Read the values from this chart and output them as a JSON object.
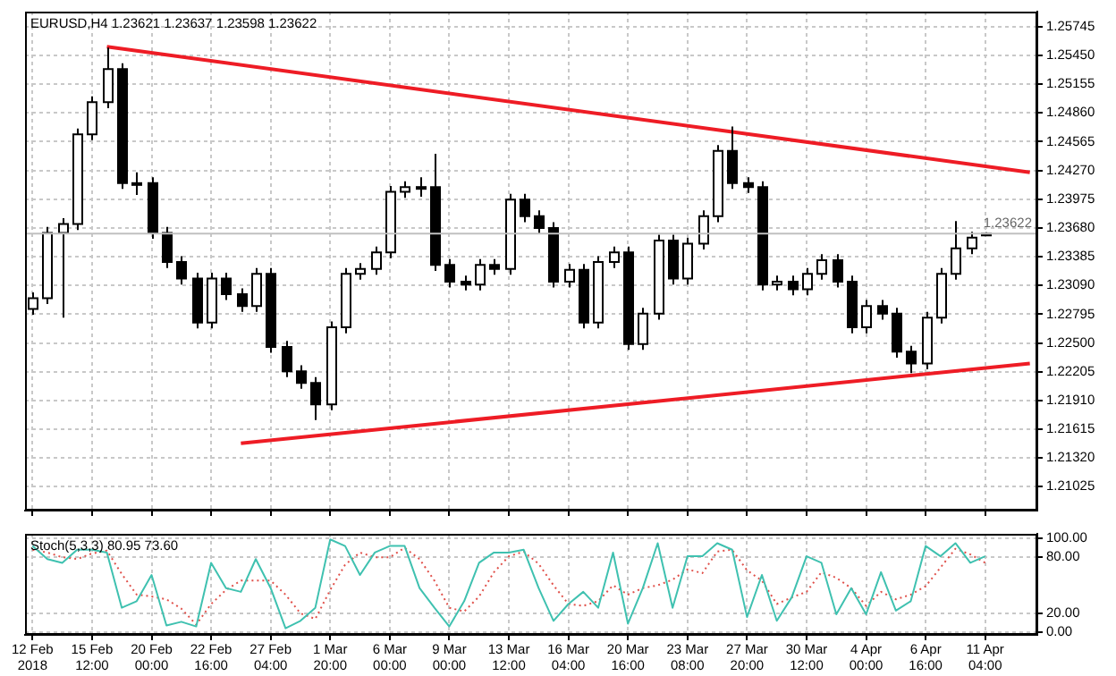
{
  "chart_data": [
    {
      "type": "candlestick",
      "title": "EURUSD,H4 1.23621 1.23637 1.23598 1.23622",
      "categories": [
        null,
        null,
        null,
        null,
        null,
        null,
        null,
        null,
        null,
        null,
        null,
        null,
        null,
        null,
        null,
        null,
        null,
        null,
        null,
        null,
        null,
        null,
        null,
        null,
        null,
        null,
        null,
        null,
        null,
        null,
        null,
        null,
        null,
        null,
        null,
        null,
        null,
        null,
        null,
        null,
        null,
        null,
        null,
        null,
        null,
        null,
        null,
        null,
        null,
        null,
        null,
        null,
        null,
        null,
        null,
        null,
        null,
        null,
        null,
        null,
        null,
        null,
        null,
        null,
        null,
        null,
        null,
        null
      ],
      "ohlc": [
        [
          1.2285,
          1.2302,
          1.2279,
          1.2296
        ],
        [
          1.2296,
          1.2369,
          1.229,
          1.2363
        ],
        [
          1.2363,
          1.2378,
          1.2276,
          1.2372
        ],
        [
          1.2372,
          1.247,
          1.2366,
          1.2464
        ],
        [
          1.2464,
          1.2503,
          1.2458,
          1.2497
        ],
        [
          1.2497,
          1.2553,
          1.2491,
          1.2531
        ],
        [
          1.2531,
          1.2537,
          1.2408,
          1.2414
        ],
        [
          1.2414,
          1.2425,
          1.2402,
          1.2414
        ],
        [
          1.2414,
          1.242,
          1.2357,
          1.2363
        ],
        [
          1.2363,
          1.2369,
          1.2327,
          1.2333
        ],
        [
          1.2333,
          1.2339,
          1.231,
          1.2316
        ],
        [
          1.2316,
          1.2322,
          1.2265,
          1.2271
        ],
        [
          1.2271,
          1.2322,
          1.2265,
          1.2316
        ],
        [
          1.2316,
          1.2322,
          1.2294,
          1.23
        ],
        [
          1.23,
          1.2306,
          1.2282,
          1.2288
        ],
        [
          1.2288,
          1.2327,
          1.2282,
          1.2321
        ],
        [
          1.2321,
          1.2327,
          1.224,
          1.2246
        ],
        [
          1.2246,
          1.2252,
          1.2215,
          1.2221
        ],
        [
          1.2221,
          1.2227,
          1.2203,
          1.2209
        ],
        [
          1.2209,
          1.2215,
          1.2171,
          1.2187
        ],
        [
          1.2187,
          1.2272,
          1.2181,
          1.2266
        ],
        [
          1.2266,
          1.2327,
          1.226,
          1.2321
        ],
        [
          1.2321,
          1.2332,
          1.2315,
          1.2326
        ],
        [
          1.2326,
          1.2349,
          1.232,
          1.2343
        ],
        [
          1.2343,
          1.2411,
          1.2337,
          1.2405
        ],
        [
          1.2405,
          1.2416,
          1.2399,
          1.241
        ],
        [
          1.241,
          1.242,
          1.24,
          1.241
        ],
        [
          1.241,
          1.2444,
          1.2324,
          1.233
        ],
        [
          1.233,
          1.2336,
          1.2307,
          1.2313
        ],
        [
          1.2313,
          1.2319,
          1.2304,
          1.231
        ],
        [
          1.231,
          1.2336,
          1.2304,
          1.233
        ],
        [
          1.233,
          1.2336,
          1.232,
          1.2326
        ],
        [
          1.2326,
          1.2403,
          1.232,
          1.2397
        ],
        [
          1.2397,
          1.2403,
          1.2374,
          1.238
        ],
        [
          1.238,
          1.2386,
          1.2362,
          1.2368
        ],
        [
          1.2368,
          1.2374,
          1.2307,
          1.2313
        ],
        [
          1.2313,
          1.2331,
          1.2307,
          1.2325
        ],
        [
          1.2325,
          1.2331,
          1.2265,
          1.2271
        ],
        [
          1.2271,
          1.2339,
          1.2265,
          1.2333
        ],
        [
          1.2333,
          1.2349,
          1.2327,
          1.2343
        ],
        [
          1.2343,
          1.2349,
          1.2243,
          1.2249
        ],
        [
          1.2249,
          1.2286,
          1.2243,
          1.228
        ],
        [
          1.228,
          1.2361,
          1.2274,
          1.2355
        ],
        [
          1.2355,
          1.2361,
          1.231,
          1.2316
        ],
        [
          1.2316,
          1.2358,
          1.231,
          1.2352
        ],
        [
          1.2352,
          1.2386,
          1.2346,
          1.238
        ],
        [
          1.238,
          1.2453,
          1.2374,
          1.2447
        ],
        [
          1.2447,
          1.2472,
          1.2408,
          1.2414
        ],
        [
          1.2414,
          1.242,
          1.2404,
          1.241
        ],
        [
          1.241,
          1.2416,
          1.2304,
          1.231
        ],
        [
          1.231,
          1.2319,
          1.2304,
          1.2313
        ],
        [
          1.2313,
          1.2319,
          1.2299,
          1.2305
        ],
        [
          1.2305,
          1.2327,
          1.2299,
          1.2321
        ],
        [
          1.2321,
          1.2341,
          1.2315,
          1.2335
        ],
        [
          1.2335,
          1.2341,
          1.2307,
          1.2313
        ],
        [
          1.2313,
          1.2319,
          1.226,
          1.2266
        ],
        [
          1.2266,
          1.2294,
          1.226,
          1.2288
        ],
        [
          1.2288,
          1.2294,
          1.2274,
          1.228
        ],
        [
          1.228,
          1.2286,
          1.2235,
          1.2241
        ],
        [
          1.2241,
          1.2247,
          1.2219,
          1.2229
        ],
        [
          1.2229,
          1.2282,
          1.2223,
          1.2276
        ],
        [
          1.2276,
          1.2327,
          1.227,
          1.2321
        ],
        [
          1.2321,
          1.2375,
          1.2315,
          1.2347
        ],
        [
          1.2347,
          1.2364,
          1.2341,
          1.2358
        ],
        [
          1.23621,
          1.23637,
          1.23598,
          1.23622
        ],
        null,
        null,
        null
      ],
      "series": [
        {
          "type": "line",
          "color": "#ee1c25",
          "values": [
            null,
            null,
            null,
            null,
            null,
            1.2554,
            null,
            null,
            null,
            null,
            null,
            null,
            null,
            null,
            null,
            null,
            null,
            null,
            null,
            null,
            null,
            null,
            null,
            null,
            null,
            null,
            null,
            null,
            null,
            null,
            null,
            null,
            null,
            null,
            null,
            null,
            null,
            null,
            null,
            null,
            null,
            null,
            null,
            null,
            null,
            null,
            null,
            null,
            null,
            null,
            null,
            null,
            null,
            null,
            null,
            null,
            null,
            null,
            null,
            null,
            null,
            null,
            null,
            null,
            null,
            null,
            null,
            1.2425
          ]
        },
        {
          "type": "line",
          "color": "#ee1c25",
          "values": [
            null,
            null,
            null,
            null,
            null,
            null,
            null,
            null,
            null,
            null,
            null,
            null,
            null,
            null,
            1.2147,
            null,
            null,
            null,
            null,
            null,
            null,
            null,
            null,
            null,
            null,
            null,
            null,
            null,
            null,
            null,
            null,
            null,
            null,
            null,
            null,
            null,
            null,
            null,
            null,
            null,
            null,
            null,
            null,
            null,
            null,
            null,
            null,
            null,
            null,
            null,
            null,
            null,
            null,
            null,
            null,
            null,
            null,
            null,
            null,
            null,
            null,
            null,
            null,
            null,
            null,
            null,
            null,
            1.2229
          ]
        }
      ],
      "ylim": [
        1.2078,
        1.259
      ],
      "yticks": [
        1.25745,
        {
          "value": 1.2545,
          "label": "1.25450"
        },
        1.25155,
        {
          "value": 1.2486,
          "label": "1.24860"
        },
        1.24565,
        {
          "value": 1.2427,
          "label": "1.24270"
        },
        1.23975,
        {
          "value": 1.2368,
          "label": "1.23680"
        },
        1.23385,
        {
          "value": 1.2309,
          "label": "1.23090"
        },
        1.22795,
        {
          "value": 1.225,
          "label": "1.22500"
        },
        1.22205,
        {
          "value": 1.2191,
          "label": "1.21910"
        },
        1.21615,
        {
          "value": 1.2132,
          "label": "1.21320"
        },
        1.21025
      ],
      "ref_lines": [
        {
          "axis": "y",
          "value": 1.23622,
          "label": "1.23622",
          "color": "#c0c0c0"
        }
      ],
      "grid": true,
      "tick_labels": "y"
    },
    {
      "type": "line",
      "title": "Stoch(5,3,3) 80.95 73.60",
      "categories": [
        "12 Feb 2018",
        null,
        null,
        null,
        "15 Feb 12:00",
        null,
        null,
        null,
        "20 Feb 00:00",
        null,
        null,
        null,
        "22 Feb 16:00",
        null,
        null,
        null,
        "27 Feb 04:00",
        null,
        null,
        null,
        "1 Mar 20:00",
        null,
        null,
        null,
        "6 Mar 00:00",
        null,
        null,
        null,
        "9 Mar 00:00",
        null,
        null,
        null,
        "13 Mar 12:00",
        null,
        null,
        null,
        "16 Mar 04:00",
        null,
        null,
        null,
        "20 Mar 16:00",
        null,
        null,
        null,
        "23 Mar 08:00",
        null,
        null,
        null,
        "27 Mar 20:00",
        null,
        null,
        null,
        "30 Mar 12:00",
        null,
        null,
        null,
        "4 Apr 00:00",
        null,
        null,
        null,
        "6 Apr 16:00",
        null,
        null,
        null,
        "11 Apr 04:00",
        null,
        null,
        null
      ],
      "series": [
        {
          "color": "#3fc1b0",
          "line_style": "solid",
          "values": [
            92,
            78,
            74,
            88,
            88,
            85,
            26,
            33,
            61,
            7,
            11,
            6,
            74,
            47,
            43,
            78,
            47,
            4,
            12,
            26,
            99,
            92,
            61,
            85,
            92,
            92,
            47,
            26,
            6,
            33,
            74,
            85,
            85,
            88,
            47,
            12,
            30,
            43,
            26,
            85,
            9,
            47,
            95,
            26,
            81,
            81,
            95,
            88,
            16,
            61,
            12,
            37,
            81,
            74,
            19,
            47,
            19,
            64,
            23,
            33,
            92,
            81,
            95,
            74,
            81,
            null,
            null,
            null
          ]
        },
        {
          "color": "#e0504a",
          "line_style": "dotted",
          "values": [
            88,
            85,
            80,
            78,
            84,
            87,
            62,
            40,
            38,
            35,
            25,
            8,
            30,
            45,
            55,
            55,
            55,
            40,
            20,
            14,
            45,
            72,
            85,
            80,
            80,
            90,
            78,
            55,
            26,
            22,
            38,
            64,
            81,
            86,
            73,
            50,
            30,
            28,
            33,
            50,
            40,
            47,
            50,
            56,
            67,
            63,
            86,
            88,
            66,
            55,
            30,
            37,
            43,
            64,
            58,
            47,
            28,
            43,
            35,
            40,
            49,
            69,
            89,
            83,
            74,
            null,
            null,
            null
          ]
        }
      ],
      "ylim": [
        -3,
        105
      ],
      "yticks": [
        {
          "value": 0,
          "label": "0.00"
        },
        {
          "value": 20,
          "label": "20.00"
        },
        {
          "value": 80,
          "label": "80.00"
        },
        {
          "value": 100,
          "label": "100.00"
        }
      ],
      "grid": true
    }
  ]
}
